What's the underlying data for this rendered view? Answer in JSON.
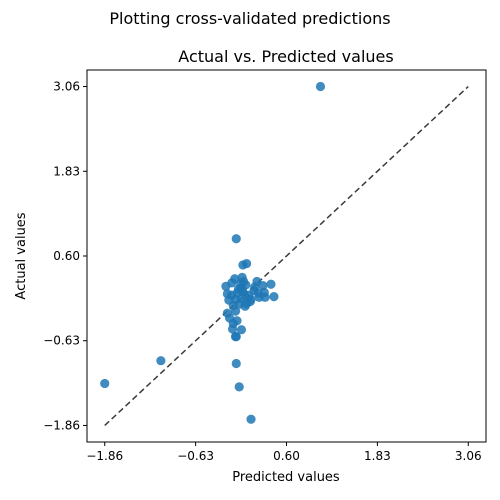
{
  "suptitle": "Plotting cross-validated predictions",
  "chart_data": {
    "type": "scatter",
    "title": "Actual vs. Predicted values",
    "xlabel": "Predicted values",
    "ylabel": "Actual values",
    "xlim": [
      -2.1,
      3.3
    ],
    "ylim": [
      -2.1,
      3.3
    ],
    "xticks": [
      -1.86,
      -0.63,
      0.6,
      1.83,
      3.06
    ],
    "yticks": [
      -1.86,
      -0.63,
      0.6,
      1.83,
      3.06
    ],
    "xtick_labels": [
      "−1.86",
      "−0.63",
      "0.60",
      "1.83",
      "3.06"
    ],
    "ytick_labels": [
      "−1.86",
      "−0.63",
      "0.60",
      "1.83",
      "3.06"
    ],
    "reference_line": {
      "from": [
        -1.86,
        -1.86
      ],
      "to": [
        3.06,
        3.06
      ],
      "style": "dashed",
      "color": "#3a3a3a"
    },
    "grid": false,
    "legend": "none",
    "marker_color": "#1f77b4",
    "points": [
      {
        "x": 1.06,
        "y": 3.06
      },
      {
        "x": -1.86,
        "y": -1.25
      },
      {
        "x": -1.1,
        "y": -0.92
      },
      {
        "x": -0.08,
        "y": 0.85
      },
      {
        "x": -0.08,
        "y": -0.96
      },
      {
        "x": -0.04,
        "y": -1.3
      },
      {
        "x": 0.12,
        "y": -1.77
      },
      {
        "x": 0.06,
        "y": 0.49
      },
      {
        "x": 0.01,
        "y": 0.47
      },
      {
        "x": 0.43,
        "y": 0.01
      },
      {
        "x": 0.28,
        "y": 0.17
      },
      {
        "x": 0.39,
        "y": 0.19
      },
      {
        "x": 0.2,
        "y": 0.23
      },
      {
        "x": -0.1,
        "y": 0.27
      },
      {
        "x": 0.0,
        "y": 0.29
      },
      {
        "x": -0.22,
        "y": 0.16
      },
      {
        "x": 0.05,
        "y": 0.18
      },
      {
        "x": -0.02,
        "y": 0.13
      },
      {
        "x": 0.16,
        "y": 0.1
      },
      {
        "x": 0.22,
        "y": 0.06
      },
      {
        "x": 0.3,
        "y": 0.07
      },
      {
        "x": -0.2,
        "y": 0.05
      },
      {
        "x": -0.14,
        "y": 0.03
      },
      {
        "x": -0.07,
        "y": 0.06
      },
      {
        "x": 0.01,
        "y": 0.08
      },
      {
        "x": 0.09,
        "y": 0.03
      },
      {
        "x": 0.23,
        "y": 0.0
      },
      {
        "x": -0.18,
        "y": -0.04
      },
      {
        "x": -0.09,
        "y": -0.03
      },
      {
        "x": -0.01,
        "y": -0.02
      },
      {
        "x": 0.05,
        "y": 0.0
      },
      {
        "x": 0.11,
        "y": -0.06
      },
      {
        "x": -0.04,
        "y": -0.1
      },
      {
        "x": -0.12,
        "y": -0.12
      },
      {
        "x": -0.2,
        "y": -0.23
      },
      {
        "x": -0.09,
        "y": -0.2
      },
      {
        "x": -0.17,
        "y": -0.3
      },
      {
        "x": -0.07,
        "y": -0.34
      },
      {
        "x": -0.13,
        "y": -0.46
      },
      {
        "x": -0.09,
        "y": -0.57
      },
      {
        "x": -0.01,
        "y": -0.47
      },
      {
        "x": 0.04,
        "y": -0.13
      },
      {
        "x": 0.02,
        "y": 0.23
      },
      {
        "x": 0.17,
        "y": 0.15
      },
      {
        "x": -0.14,
        "y": 0.21
      },
      {
        "x": 0.12,
        "y": -0.03
      },
      {
        "x": -0.05,
        "y": 0.12
      },
      {
        "x": 0.31,
        "y": 0.0
      },
      {
        "x": -0.12,
        "y": -0.38
      },
      {
        "x": -0.08,
        "y": -0.57
      },
      {
        "x": 0.0,
        "y": 0.11
      },
      {
        "x": 0.06,
        "y": -0.09
      },
      {
        "x": -0.02,
        "y": 0.2
      }
    ]
  }
}
